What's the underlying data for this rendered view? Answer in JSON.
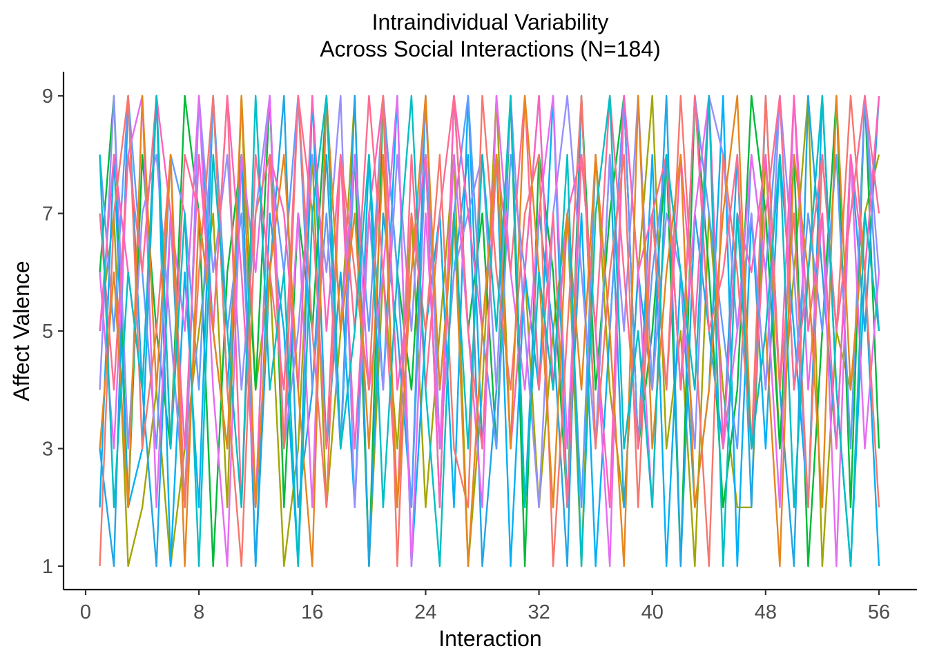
{
  "chart_data": {
    "type": "line",
    "title_lines": [
      "Intraindividual Variability",
      "Across Social Interactions (N=184)"
    ],
    "xlabel": "Interaction",
    "ylabel": "Affect Valence",
    "xlim": [
      0,
      56
    ],
    "ylim": [
      1,
      9
    ],
    "x_ticks": [
      0,
      8,
      16,
      24,
      32,
      40,
      48,
      56
    ],
    "x_tick_labels": [
      "0",
      "8",
      "16",
      "24",
      "32",
      "40",
      "48",
      "56"
    ],
    "y_ticks": [
      1,
      3,
      5,
      7,
      9
    ],
    "y_tick_labels": [
      "1",
      "3",
      "5",
      "7",
      "9"
    ],
    "grid": false,
    "legend": "none",
    "n_series": 184,
    "series_colors": [
      "#F8766D",
      "#E7851E",
      "#A3A500",
      "#00BA38",
      "#00BF7D",
      "#00BFC4",
      "#00B0F6",
      "#619CFF",
      "#9590FF",
      "#E76BF3",
      "#FF62BC",
      "#FF6C91"
    ],
    "series": [
      {
        "color": "#A3A500",
        "values": [
          5,
          7,
          1,
          2,
          4,
          1,
          3,
          5,
          7,
          2,
          9,
          4,
          6,
          1,
          3,
          8,
          2,
          5,
          9,
          1,
          6,
          3,
          7,
          2,
          5,
          8,
          1,
          4,
          9,
          3,
          6,
          2,
          5,
          7,
          1,
          8,
          4,
          2,
          6,
          9,
          3,
          5,
          1,
          7,
          4,
          2,
          2,
          8,
          3,
          6,
          9,
          1,
          5,
          4,
          7,
          8
        ]
      },
      {
        "color": "#00BA38",
        "values": [
          6,
          9,
          2,
          8,
          5,
          3,
          9,
          7,
          1,
          6,
          8,
          4,
          9,
          2,
          7,
          5,
          9,
          3,
          8,
          1,
          9,
          6,
          4,
          8,
          2,
          9,
          5,
          7,
          3,
          9,
          1,
          8,
          6,
          2,
          9,
          4,
          7,
          9,
          3,
          5,
          8,
          1,
          9,
          6,
          2,
          4,
          9,
          7,
          3,
          8,
          1,
          5,
          9,
          2,
          9,
          3
        ]
      },
      {
        "color": "#00B0F6",
        "values": [
          2,
          8,
          2,
          3,
          9,
          1,
          6,
          2,
          9,
          4,
          8,
          1,
          7,
          5,
          1,
          9,
          3,
          6,
          2,
          8,
          4,
          9,
          1,
          5,
          7,
          2,
          9,
          3,
          8,
          1,
          6,
          4,
          9,
          2,
          7,
          1,
          5,
          9,
          3,
          8,
          1,
          6,
          2,
          4,
          9,
          1,
          7,
          3,
          8,
          5,
          2,
          9,
          4,
          1,
          6,
          1
        ]
      },
      {
        "color": "#1FA6E6",
        "values": [
          3,
          1,
          9,
          4,
          1,
          7,
          2,
          9,
          5,
          3,
          8,
          1,
          6,
          9,
          2,
          4,
          8,
          3,
          9,
          1,
          7,
          5,
          2,
          9,
          3,
          6,
          8,
          1,
          4,
          9,
          2,
          7,
          5,
          1,
          9,
          3,
          8,
          2,
          6,
          4,
          9,
          1,
          7,
          5,
          3,
          8,
          2,
          9,
          4,
          1,
          9,
          6,
          3,
          8,
          5,
          9
        ]
      },
      {
        "color": "#619CFF",
        "values": [
          8,
          5,
          9,
          6,
          3,
          8,
          7,
          4,
          9,
          5,
          7,
          2,
          8,
          6,
          9,
          4,
          7,
          3,
          8,
          5,
          9,
          6,
          2,
          8,
          4,
          7,
          9,
          5,
          3,
          8,
          6,
          9,
          4,
          7,
          2,
          8,
          5,
          9,
          3,
          6,
          8,
          4,
          9,
          7,
          5,
          3,
          8,
          6,
          9,
          4,
          7,
          5,
          8,
          3,
          9,
          5
        ]
      },
      {
        "color": "#9590FF",
        "values": [
          4,
          9,
          3,
          7,
          8,
          5,
          2,
          9,
          6,
          8,
          4,
          7,
          9,
          3,
          5,
          8,
          6,
          9,
          2,
          7,
          4,
          8,
          5,
          9,
          3,
          6,
          7,
          8,
          4,
          9,
          5,
          2,
          7,
          9,
          6,
          3,
          8,
          5,
          9,
          4,
          7,
          6,
          3,
          9,
          8,
          5,
          7,
          4,
          9,
          6,
          2,
          8,
          5,
          7,
          9,
          6
        ]
      },
      {
        "color": "#E76BF3",
        "values": [
          6,
          3,
          8,
          9,
          2,
          7,
          5,
          9,
          4,
          1,
          8,
          6,
          9,
          3,
          7,
          2,
          9,
          5,
          8,
          4,
          6,
          9,
          1,
          7,
          3,
          8,
          5,
          2,
          9,
          6,
          4,
          7,
          9,
          3,
          8,
          5,
          1,
          9,
          6,
          2,
          8,
          4,
          7,
          9,
          3,
          5,
          8,
          6,
          2,
          9,
          4,
          7,
          1,
          8,
          3,
          6
        ]
      },
      {
        "color": "#FF62BC",
        "values": [
          5,
          8,
          6,
          4,
          9,
          7,
          3,
          8,
          5,
          9,
          6,
          2,
          8,
          7,
          4,
          9,
          5,
          8,
          3,
          7,
          9,
          4,
          6,
          8,
          2,
          9,
          7,
          5,
          8,
          3,
          6,
          9,
          4,
          7,
          8,
          5,
          2,
          9,
          6,
          7,
          4,
          8,
          5,
          9,
          3,
          7,
          6,
          8,
          4,
          9,
          5,
          7,
          3,
          8,
          6,
          9
        ]
      },
      {
        "color": "#F8766D",
        "values": [
          1,
          7,
          9,
          3,
          5,
          8,
          2,
          6,
          9,
          4,
          1,
          7,
          8,
          3,
          9,
          5,
          2,
          8,
          6,
          4,
          9,
          1,
          7,
          5,
          8,
          3,
          2,
          9,
          6,
          4,
          7,
          8,
          1,
          5,
          9,
          3,
          6,
          8,
          2,
          7,
          4,
          9,
          5,
          1,
          8,
          6,
          3,
          9,
          4,
          7,
          2,
          8,
          5,
          9,
          6,
          2
        ]
      },
      {
        "color": "#FF6C91",
        "values": [
          7,
          4,
          8,
          6,
          9,
          3,
          8,
          7,
          5,
          9,
          2,
          8,
          6,
          4,
          9,
          7,
          3,
          8,
          5,
          9,
          6,
          2,
          8,
          4,
          7,
          9,
          5,
          3,
          8,
          6,
          9,
          4,
          7,
          2,
          8,
          5,
          9,
          6,
          3,
          7,
          8,
          4,
          9,
          5,
          6,
          8,
          3,
          7,
          9,
          4,
          6,
          8,
          5,
          7,
          9,
          7
        ]
      },
      {
        "color": "#E7851E",
        "values": [
          3,
          6,
          2,
          9,
          4,
          8,
          1,
          7,
          5,
          3,
          9,
          2,
          6,
          8,
          4,
          1,
          9,
          5,
          7,
          3,
          8,
          2,
          6,
          9,
          4,
          7,
          1,
          5,
          8,
          3,
          9,
          6,
          2,
          7,
          4,
          8,
          5,
          1,
          9,
          3,
          6,
          8,
          2,
          4,
          7,
          9,
          3,
          5,
          1,
          8,
          6,
          2,
          9,
          4,
          7,
          5
        ]
      },
      {
        "color": "#00BFC4",
        "values": [
          8,
          2,
          6,
          4,
          9,
          3,
          7,
          1,
          8,
          5,
          2,
          9,
          4,
          6,
          1,
          7,
          9,
          3,
          5,
          8,
          2,
          6,
          9,
          4,
          1,
          7,
          3,
          8,
          5,
          9,
          2,
          6,
          4,
          8,
          1,
          7,
          9,
          3,
          5,
          2,
          8,
          6,
          4,
          9,
          1,
          7,
          3,
          5,
          8,
          2,
          6,
          9,
          4,
          1,
          7,
          5
        ]
      }
    ]
  }
}
